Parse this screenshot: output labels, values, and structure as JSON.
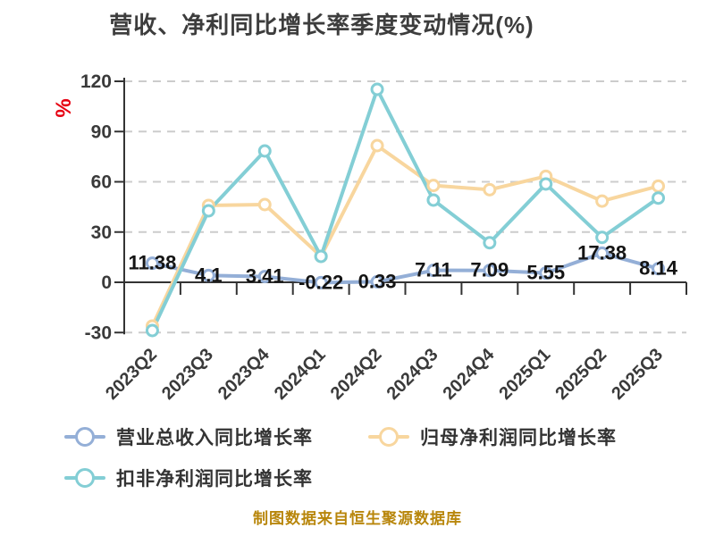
{
  "header": {
    "title": "营收、净利同比增长率季度变动情况(%)"
  },
  "y_axis": {
    "unit": "%",
    "ticks": [
      120,
      90,
      60,
      30,
      0,
      -30
    ]
  },
  "footer": {
    "text": "制图数据来自恒生聚源数据库"
  },
  "colors": {
    "title_text": "#3d3d3d",
    "axis_text": "#3a3a3a",
    "label_text": "#141414",
    "axis_line": "#333333",
    "grid_line": "#cccccc",
    "unit_red": "#e60012",
    "footer_gold": "#b8860b",
    "series_blue": "#94afd7",
    "series_orange": "#f8d69e",
    "series_teal": "#83ced5"
  },
  "chart_data": {
    "type": "line",
    "title": "营收、净利同比增长率季度变动情况(%)",
    "unit": "%",
    "categories": [
      "2023Q2",
      "2023Q3",
      "2023Q4",
      "2024Q1",
      "2024Q2",
      "2024Q3",
      "2024Q4",
      "2025Q1",
      "2025Q2",
      "2025Q3"
    ],
    "series": [
      {
        "name": "营业总收入同比增长率",
        "color": "#94afd7",
        "show_labels": true,
        "values": [
          11.38,
          4.1,
          3.41,
          -0.22,
          0.33,
          7.11,
          7.09,
          5.55,
          17.38,
          8.14
        ]
      },
      {
        "name": "归母净利润同比增长率",
        "color": "#f8d69e",
        "show_labels": false,
        "values": [
          -26.1,
          45.9,
          46.4,
          15.5,
          81.6,
          57.8,
          55.3,
          63.3,
          48.5,
          57.4
        ]
      },
      {
        "name": "扣非净利润同比增长率",
        "color": "#83ced5",
        "show_labels": false,
        "values": [
          -28.8,
          42.7,
          78.4,
          15.5,
          115.2,
          49.1,
          23.6,
          58.7,
          26.8,
          50.3
        ]
      }
    ],
    "ylim": [
      -30,
      120
    ],
    "ytick_step": 30,
    "grid": true,
    "grid_style": "dashed",
    "legend_position": "bottom",
    "x_label_rotation": -45
  }
}
